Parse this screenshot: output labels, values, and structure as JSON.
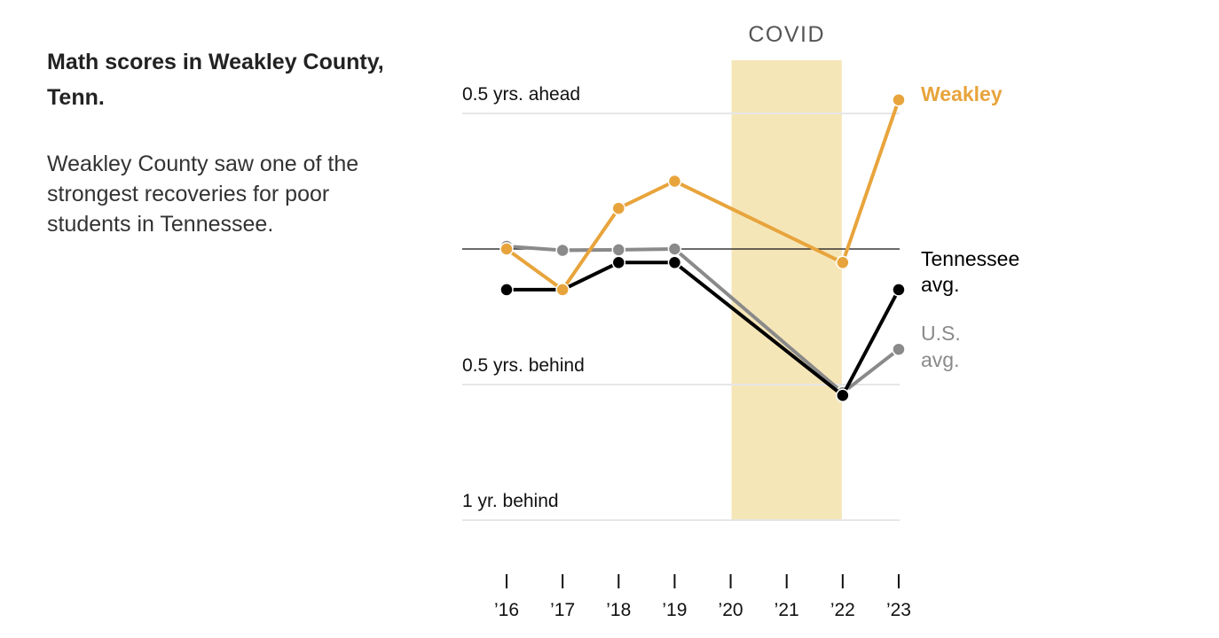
{
  "title": "Math scores in Weakley County, Tenn.",
  "subtitle": "Weakley County saw one of the strongest recoveries for poor students in Tennessee.",
  "chart_data": {
    "type": "line",
    "x": [
      "’16",
      "’17",
      "’18",
      "’19",
      "’20",
      "’21",
      "’22",
      "’23"
    ],
    "ylim": [
      -1,
      0.5
    ],
    "y_ticks": [
      {
        "value": 0.5,
        "label": "0.5 yrs. ahead"
      },
      {
        "value": -0.5,
        "label": "0.5 yrs. behind"
      },
      {
        "value": -1,
        "label": "1 yr. behind"
      }
    ],
    "reference_line": 0,
    "shaded_band": {
      "from": "’20",
      "to": "’22",
      "label": "COVID",
      "color": "#f5e6b8"
    },
    "series": [
      {
        "name": "U.S. avg.",
        "name_lines": [
          "U.S.",
          "avg."
        ],
        "color": "#8a8a8a",
        "values": [
          0.01,
          -0.005,
          -0.003,
          0.0,
          null,
          null,
          -0.53,
          -0.37
        ]
      },
      {
        "name": "Tennessee avg.",
        "name_lines": [
          "Tennessee",
          "avg."
        ],
        "color": "#000000",
        "values": [
          -0.15,
          -0.15,
          -0.05,
          -0.05,
          null,
          null,
          -0.54,
          -0.15
        ]
      },
      {
        "name": "Weakley",
        "name_lines": [
          "Weakley"
        ],
        "color": "#e8a43c",
        "values": [
          0.0,
          -0.15,
          0.15,
          0.25,
          null,
          null,
          -0.05,
          0.55
        ]
      }
    ]
  }
}
